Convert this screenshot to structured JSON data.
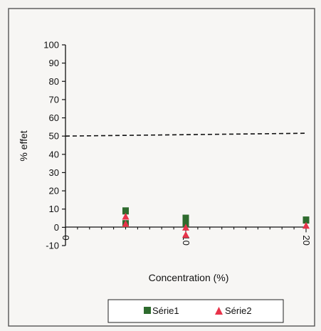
{
  "chart_data": {
    "type": "scatter",
    "xlabel": "Concentration (%)",
    "ylabel": "% effet",
    "xlim": [
      0,
      20
    ],
    "ylim": [
      -10,
      100
    ],
    "y_ticks": [
      "-10",
      "0",
      "10",
      "20",
      "30",
      "40",
      "50",
      "60",
      "70",
      "80",
      "90",
      "100"
    ],
    "x_ticks": [
      "0",
      "10",
      "20"
    ],
    "grid": false,
    "legend_position": "bottom",
    "reference_line": {
      "y": 50,
      "style": "dashed"
    },
    "series": [
      {
        "name": "Série1",
        "marker": "square",
        "color": "#2e6b2e",
        "points": [
          {
            "x": 5,
            "y": 9
          },
          {
            "x": 5,
            "y": 2
          },
          {
            "x": 10,
            "y": 5
          },
          {
            "x": 10,
            "y": 2
          },
          {
            "x": 20,
            "y": 4
          }
        ]
      },
      {
        "name": "Série2",
        "marker": "triangle",
        "color": "#e8334a",
        "points": [
          {
            "x": 5,
            "y": 6
          },
          {
            "x": 5,
            "y": 2
          },
          {
            "x": 10,
            "y": -4
          },
          {
            "x": 10,
            "y": 0
          },
          {
            "x": 20,
            "y": 1
          }
        ]
      }
    ]
  }
}
